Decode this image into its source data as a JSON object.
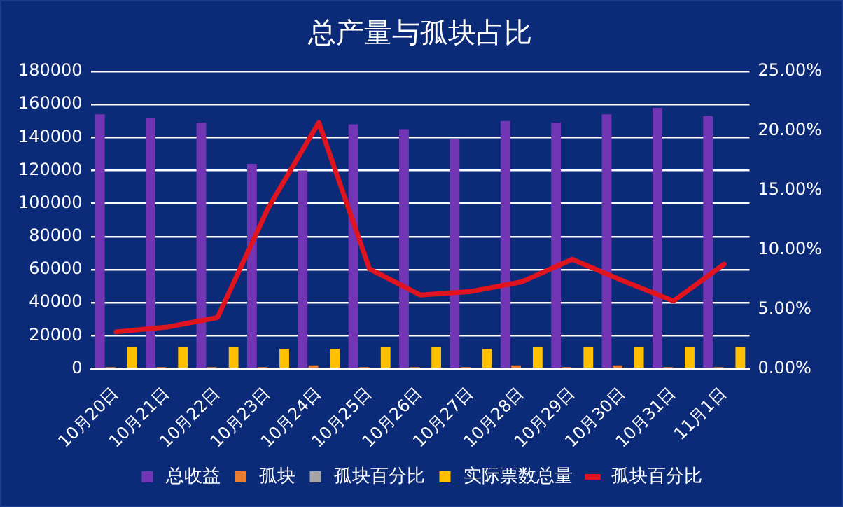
{
  "chart_data": {
    "type": "bar",
    "title": "总产量与孤块占比",
    "categories": [
      "10月20日",
      "10月21日",
      "10月22日",
      "10月23日",
      "10月24日",
      "10月25日",
      "10月26日",
      "10月27日",
      "10月28日",
      "10月29日",
      "10月30日",
      "10月31日",
      "11月1日"
    ],
    "series": [
      {
        "name": "总收益",
        "color": "#7236b4",
        "values": [
          154000,
          152000,
          149000,
          124000,
          120000,
          148000,
          145000,
          139000,
          150000,
          149000,
          154000,
          158000,
          153000
        ]
      },
      {
        "name": "孤块",
        "color": "#ed7d31",
        "values": [
          1000,
          1000,
          1000,
          1000,
          2000,
          1000,
          1000,
          1000,
          2000,
          1000,
          2000,
          1000,
          1000
        ]
      },
      {
        "name": "孤块百分比",
        "color": "#a5a5a5",
        "values": [
          0,
          0,
          0,
          0,
          0,
          0,
          0,
          0,
          0,
          0,
          0,
          0,
          0
        ]
      },
      {
        "name": "实际票数总量",
        "color": "#ffc000",
        "values": [
          13000,
          13000,
          13000,
          12000,
          12000,
          13000,
          13000,
          12000,
          13000,
          13000,
          13000,
          13000,
          13000
        ]
      },
      {
        "name": "孤块百分比",
        "type": "line",
        "axis": "y2",
        "color": "#e0141e",
        "values": [
          3.1,
          3.5,
          4.3,
          13.5,
          20.7,
          8.4,
          6.2,
          6.5,
          7.3,
          9.2,
          7.4,
          5.7,
          8.8
        ]
      }
    ],
    "ylim": [
      0,
      180000
    ],
    "yticks": [
      0,
      20000,
      40000,
      60000,
      80000,
      100000,
      120000,
      140000,
      160000,
      180000
    ],
    "y2lim": [
      0,
      25
    ],
    "y2ticks": [
      {
        "value": 0,
        "label": "0.00%"
      },
      {
        "value": 5,
        "label": "5.00%"
      },
      {
        "value": 10,
        "label": "10.00%"
      },
      {
        "value": 15,
        "label": "15.00%"
      },
      {
        "value": 20,
        "label": "20.00%"
      },
      {
        "value": 25,
        "label": "25.00%"
      }
    ],
    "grid": "y",
    "legend": "bottom",
    "marker": "none"
  }
}
